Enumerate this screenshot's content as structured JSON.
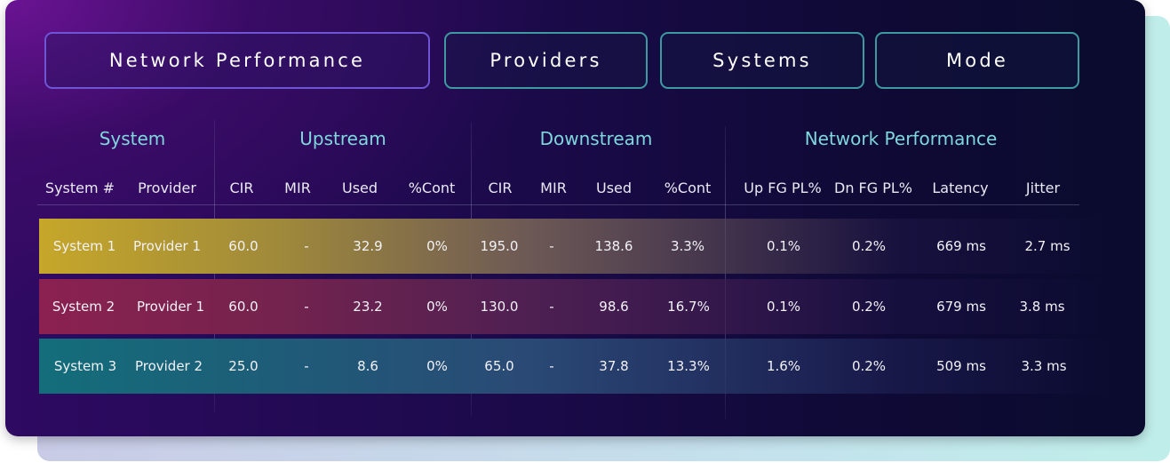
{
  "tabs": [
    {
      "label": "Network Performance",
      "active": true
    },
    {
      "label": "Providers",
      "active": false
    },
    {
      "label": "Systems",
      "active": false
    },
    {
      "label": "Mode",
      "active": false
    }
  ],
  "groups": [
    "System",
    "Upstream",
    "Downstream",
    "Network Performance"
  ],
  "columns": [
    "System #",
    "Provider",
    "CIR",
    "MIR",
    "Used",
    "%Cont",
    "CIR",
    "MIR",
    "Used",
    "%Cont",
    "Up FG PL%",
    "Dn FG PL%",
    "Latency",
    "Jitter"
  ],
  "rows": [
    [
      "System 1",
      "Provider 1",
      "60.0",
      "-",
      "32.9",
      "0%",
      "195.0",
      "-",
      "138.6",
      "3.3%",
      "0.1%",
      "0.2%",
      "669 ms",
      "2.7 ms"
    ],
    [
      "System 2",
      "Provider 1",
      "60.0",
      "-",
      "23.2",
      "0%",
      "130.0",
      "-",
      "98.6",
      "16.7%",
      "0.1%",
      "0.2%",
      "679 ms",
      "3.8 ms"
    ],
    [
      "System 3",
      "Provider 2",
      "25.0",
      "-",
      "8.6",
      "0%",
      "65.0",
      "-",
      "37.8",
      "13.3%",
      "1.6%",
      "0.2%",
      "509 ms",
      "3.3 ms"
    ]
  ],
  "colors": {
    "accent_text": "#7fd6dc",
    "active_tab_border": "#6d55d6",
    "inactive_tab_border": "#3f9aa0",
    "row1": "#c6a72a",
    "row2": "#8b2150",
    "row3": "#136e7a"
  }
}
